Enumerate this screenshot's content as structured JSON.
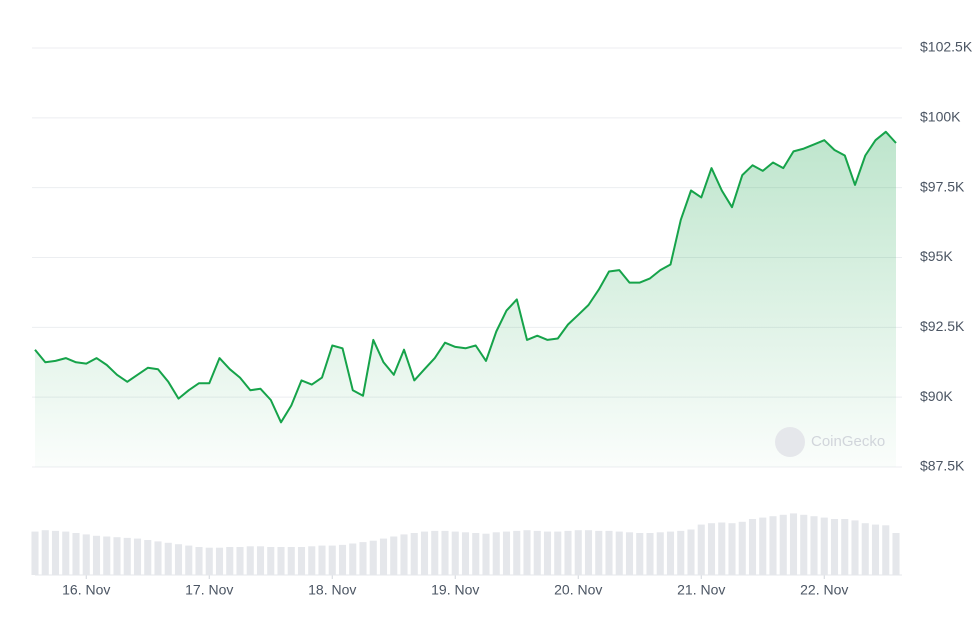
{
  "chart_data": [
    {
      "type": "line",
      "color": "#16a34a",
      "grid": true,
      "watermark": "CoinGecko",
      "values": [
        91700,
        91250,
        91300,
        91400,
        91250,
        91200,
        91400,
        91150,
        90800,
        90550,
        90800,
        91050,
        91000,
        90550,
        89950,
        90250,
        90500,
        90500,
        91400,
        91000,
        90700,
        90250,
        90300,
        89900,
        89100,
        89700,
        90600,
        90450,
        90700,
        91850,
        91750,
        90250,
        90050,
        92050,
        91250,
        90800,
        91700,
        90600,
        91000,
        91400,
        91950,
        91800,
        91750,
        91850,
        91300,
        92350,
        93100,
        93500,
        92050,
        92200,
        92050,
        92100,
        92600,
        92950,
        93300,
        93850,
        94500,
        94550,
        94100,
        94100,
        94250,
        94550,
        94750,
        96350,
        97400,
        97150,
        98200,
        97400,
        96800,
        97950,
        98300,
        98100,
        98400,
        98200,
        98800,
        98900,
        99050,
        99200,
        98850,
        98650,
        97600,
        98650,
        99200,
        99500,
        99100
      ],
      "xlim": [
        0,
        84
      ],
      "xticks": [
        {
          "value": 5,
          "label": "16. Nov"
        },
        {
          "value": 17,
          "label": "17. Nov"
        },
        {
          "value": 29,
          "label": "18. Nov"
        },
        {
          "value": 41,
          "label": "19. Nov"
        },
        {
          "value": 53,
          "label": "20. Nov"
        },
        {
          "value": 65,
          "label": "21. Nov"
        },
        {
          "value": 77,
          "label": "22. Nov"
        }
      ],
      "ylim": [
        87500,
        102500
      ],
      "yticks": [
        {
          "value": 87500,
          "label": "$87.5K"
        },
        {
          "value": 90000,
          "label": "$90K"
        },
        {
          "value": 92500,
          "label": "$92.5K"
        },
        {
          "value": 95000,
          "label": "$95K"
        },
        {
          "value": 97500,
          "label": "$97.5K"
        },
        {
          "value": 100000,
          "label": "$100K"
        },
        {
          "value": 102500,
          "label": "$102.5K"
        }
      ]
    },
    {
      "type": "bar",
      "color": "#e5e7eb",
      "values": [
        62,
        64,
        63,
        62,
        60,
        58,
        56,
        55,
        54,
        53,
        52,
        50,
        48,
        46,
        44,
        42,
        40,
        39,
        39,
        40,
        40,
        41,
        41,
        40,
        40,
        40,
        40,
        41,
        42,
        42,
        43,
        45,
        47,
        49,
        52,
        55,
        58,
        60,
        62,
        63,
        63,
        62,
        61,
        60,
        59,
        61,
        62,
        63,
        64,
        63,
        62,
        62,
        63,
        64,
        64,
        63,
        63,
        62,
        61,
        60,
        60,
        61,
        62,
        63,
        65,
        72,
        74,
        75,
        74,
        76,
        80,
        82,
        84,
        86,
        88,
        86,
        84,
        82,
        80,
        80,
        78,
        74,
        72,
        71,
        60
      ],
      "ylim": [
        0,
        100
      ]
    }
  ]
}
